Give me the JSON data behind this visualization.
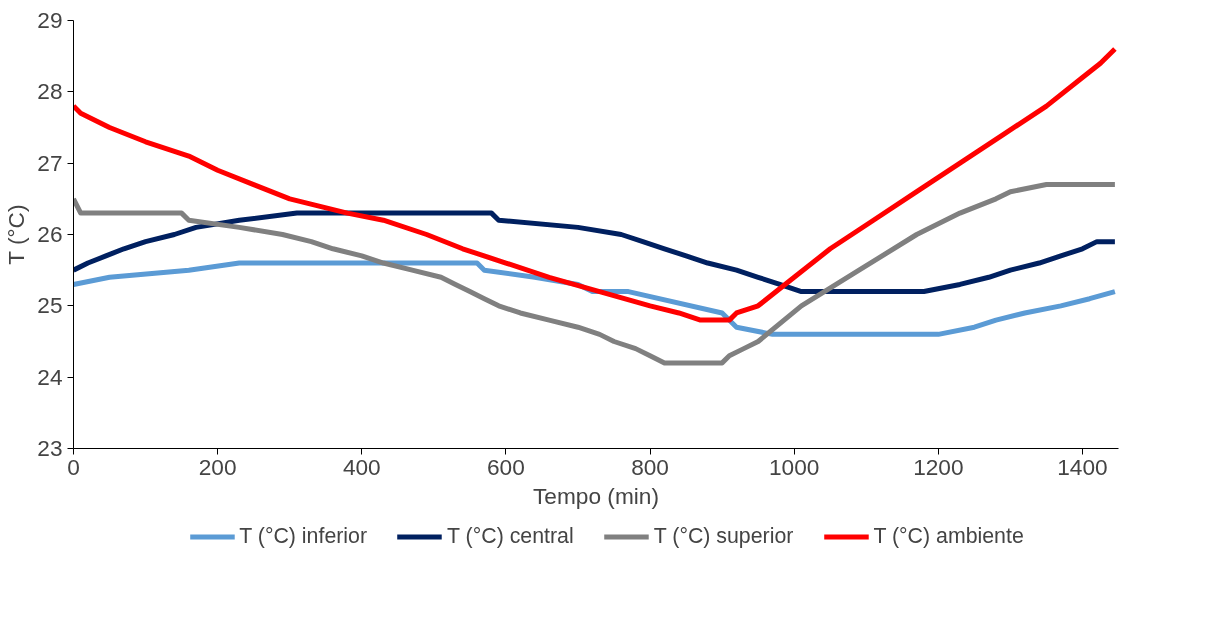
{
  "chart_data": {
    "type": "line",
    "xlabel": "Tempo (min)",
    "ylabel": "T (°C)",
    "xlim": [
      0,
      1450
    ],
    "ylim": [
      23,
      29
    ],
    "xticks": [
      0,
      200,
      400,
      600,
      800,
      1000,
      1200,
      1400
    ],
    "yticks": [
      23,
      24,
      25,
      26,
      27,
      28,
      29
    ],
    "grid": false,
    "legend": "bottom",
    "marker": "none",
    "line_style": "solid",
    "series": [
      {
        "name": "T (°C) inferior",
        "color": "#5b9bd5",
        "x": [
          0,
          50,
          160,
          230,
          560,
          570,
          640,
          700,
          720,
          770,
          900,
          920,
          970,
          1200,
          1250,
          1280,
          1320,
          1370,
          1410,
          1445
        ],
        "values": [
          25.3,
          25.4,
          25.5,
          25.6,
          25.6,
          25.5,
          25.4,
          25.3,
          25.2,
          25.2,
          24.9,
          24.7,
          24.6,
          24.6,
          24.7,
          24.8,
          24.9,
          25.0,
          25.1,
          25.2
        ]
      },
      {
        "name": "T (°C) central",
        "color": "#002060",
        "x": [
          0,
          20,
          45,
          70,
          100,
          140,
          170,
          230,
          310,
          580,
          590,
          700,
          760,
          790,
          820,
          850,
          880,
          920,
          950,
          980,
          1010,
          1180,
          1230,
          1270,
          1300,
          1340,
          1370,
          1400,
          1420,
          1445
        ],
        "values": [
          25.5,
          25.6,
          25.7,
          25.8,
          25.9,
          26.0,
          26.1,
          26.2,
          26.3,
          26.3,
          26.2,
          26.1,
          26.0,
          25.9,
          25.8,
          25.7,
          25.6,
          25.5,
          25.4,
          25.3,
          25.2,
          25.2,
          25.3,
          25.4,
          25.5,
          25.6,
          25.7,
          25.8,
          25.9,
          25.9
        ]
      },
      {
        "name": "T (°C) superior",
        "color": "#808080",
        "x": [
          0,
          10,
          150,
          160,
          230,
          290,
          330,
          360,
          400,
          430,
          470,
          510,
          530,
          550,
          570,
          590,
          620,
          660,
          700,
          730,
          750,
          780,
          800,
          820,
          900,
          910,
          930,
          950,
          1010,
          1090,
          1170,
          1230,
          1280,
          1300,
          1350,
          1445
        ],
        "values": [
          26.5,
          26.3,
          26.3,
          26.2,
          26.1,
          26.0,
          25.9,
          25.8,
          25.7,
          25.6,
          25.5,
          25.4,
          25.3,
          25.2,
          25.1,
          25.0,
          24.9,
          24.8,
          24.7,
          24.6,
          24.5,
          24.4,
          24.3,
          24.2,
          24.2,
          24.3,
          24.4,
          24.5,
          25.0,
          25.5,
          26.0,
          26.3,
          26.5,
          26.6,
          26.7,
          26.7
        ]
      },
      {
        "name": "T (°C) ambiente",
        "color": "#ff0000",
        "x": [
          0,
          10,
          50,
          100,
          160,
          200,
          250,
          300,
          380,
          430,
          490,
          540,
          600,
          660,
          730,
          800,
          840,
          870,
          910,
          920,
          950,
          1000,
          1050,
          1110,
          1170,
          1230,
          1290,
          1350,
          1400,
          1425,
          1445
        ],
        "values": [
          27.8,
          27.7,
          27.5,
          27.3,
          27.1,
          26.9,
          26.7,
          26.5,
          26.3,
          26.2,
          26.0,
          25.8,
          25.6,
          25.4,
          25.2,
          25.0,
          24.9,
          24.8,
          24.8,
          24.9,
          25.0,
          25.4,
          25.8,
          26.2,
          26.6,
          27.0,
          27.4,
          27.8,
          28.2,
          28.4,
          28.6
        ]
      }
    ]
  }
}
